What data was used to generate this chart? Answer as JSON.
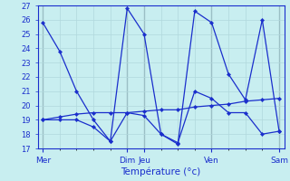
{
  "title": "Température (°c)",
  "background_color": "#c8eef0",
  "grid_color_minor": "#b0d8dc",
  "grid_color_major": "#9bbfc5",
  "line_color": "#1a2ecc",
  "ylim": [
    17,
    27
  ],
  "yticks": [
    17,
    18,
    19,
    20,
    21,
    22,
    23,
    24,
    25,
    26,
    27
  ],
  "x_day_labels": [
    "Mer",
    "Dim",
    "Jeu",
    "Ven",
    "Sam"
  ],
  "x_day_positions": [
    0,
    5,
    6,
    10,
    14
  ],
  "num_points": 15,
  "series": [
    [
      25.8,
      23.8,
      21.0,
      19.0,
      17.5,
      26.8,
      25.0,
      18.0,
      17.3,
      26.6,
      25.8,
      22.2,
      20.4,
      26.0,
      18.2
    ],
    [
      19.0,
      19.0,
      19.0,
      18.5,
      17.5,
      19.5,
      19.3,
      18.0,
      17.4,
      21.0,
      20.5,
      19.5,
      19.5,
      18.0,
      18.2
    ],
    [
      19.0,
      19.2,
      19.4,
      19.5,
      19.5,
      19.5,
      19.6,
      19.7,
      19.7,
      19.9,
      20.0,
      20.1,
      20.3,
      20.4,
      20.5
    ]
  ]
}
